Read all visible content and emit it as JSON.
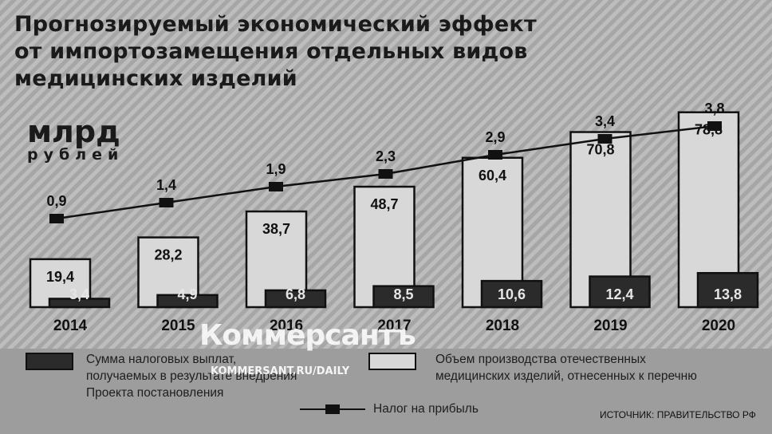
{
  "title_lines": [
    "Прогнозируемый экономический эффект",
    "от импортозамещения отдельных видов",
    "медицинских изделий"
  ],
  "unit_main": "млрд",
  "unit_sub": "рублей",
  "chart_data": {
    "type": "bar",
    "categories": [
      "2014",
      "2015",
      "2016",
      "2017",
      "2018",
      "2019",
      "2020"
    ],
    "series": [
      {
        "name": "Объем производства отечественных медицинских изделий, отнесенных к перечню",
        "kind": "bar",
        "color": "#d8d8d8",
        "values": [
          19.4,
          28.2,
          38.7,
          48.7,
          60.4,
          70.8,
          78.8
        ],
        "labels": [
          "19,4",
          "28,2",
          "38,7",
          "48,7",
          "60,4",
          "70,8",
          "78,8"
        ]
      },
      {
        "name": "Сумма налоговых выплат, получаемых в результате внедрения Проекта постановления",
        "kind": "bar",
        "color": "#2b2b2b",
        "values": [
          3.4,
          4.9,
          6.8,
          8.5,
          10.6,
          12.4,
          13.8
        ],
        "labels": [
          "3,4",
          "4,9",
          "6,8",
          "8,5",
          "10,6",
          "12,4",
          "13,8"
        ]
      },
      {
        "name": "Налог на прибыль",
        "kind": "line",
        "color": "#111111",
        "values": [
          0.9,
          1.4,
          1.9,
          2.3,
          2.9,
          3.4,
          3.8
        ],
        "labels": [
          "0,9",
          "1,4",
          "1,9",
          "2,3",
          "2,9",
          "3,4",
          "3,8"
        ]
      }
    ],
    "grid": false,
    "legend_position": "bottom"
  },
  "legend": {
    "dark_lines": [
      "Сумма налоговых выплат,",
      "получаемых в результате внедрения",
      "Проекта постановления"
    ],
    "light_lines": [
      "Объем производства отечественных",
      "медицинских изделий, отнесенных к перечню"
    ],
    "line_label": "Налог на прибыль"
  },
  "watermark": "Коммерсантъ",
  "watermark_url": "KOMMERSANT.RU/DAILY",
  "source": "ИСТОЧНИК: ПРАВИТЕЛЬСТВО РФ",
  "colors": {
    "background": "#b9b9b9",
    "stripe": "#a3a3a3",
    "light_bar": "#d8d8d8",
    "dark_bar": "#2b2b2b",
    "legend_band": "#9d9d9d"
  }
}
